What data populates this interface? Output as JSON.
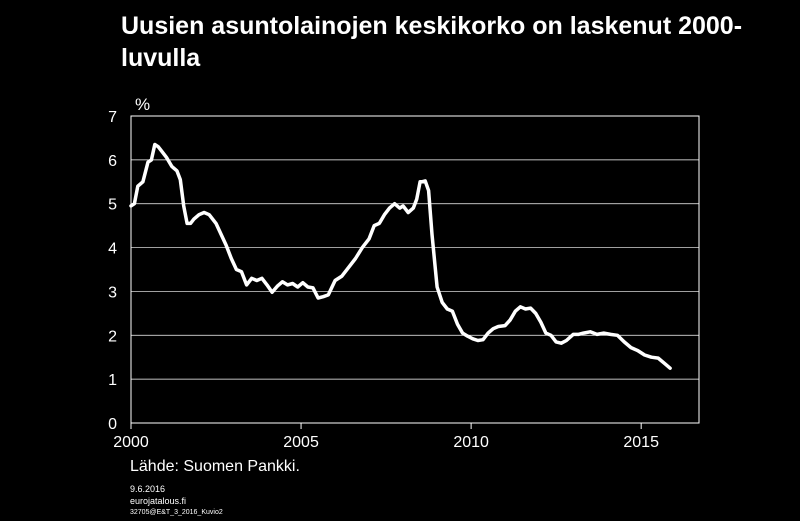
{
  "title": "Uusien asuntolainojen keskikorko on laskenut 2000-luvulla",
  "source": "Lähde: Suomen Pankki.",
  "footer": {
    "date": "9.6.2016",
    "site": "eurojatalous.fi",
    "code": "32705@E&T_3_2016_Kuvio2"
  },
  "colors": {
    "background": "#000000",
    "foreground": "#ffffff",
    "line": "#ffffff"
  },
  "chart_data": {
    "type": "line",
    "title": "Uusien asuntolainojen keskikorko on laskenut 2000-luvulla",
    "xlabel": "",
    "ylabel": "%",
    "xlim": [
      2000,
      2016.7
    ],
    "ylim": [
      0,
      7
    ],
    "x_ticks": [
      2000,
      2005,
      2010,
      2015
    ],
    "y_ticks": [
      0,
      1,
      2,
      3,
      4,
      5,
      6,
      7
    ],
    "grid": "horizontal",
    "legend": "none",
    "series": [
      {
        "x": [
          2000.0,
          2000.1,
          2000.2,
          2000.35,
          2000.5,
          2000.6,
          2000.7,
          2000.8,
          2000.9,
          2001.05,
          2001.2,
          2001.35,
          2001.45,
          2001.55,
          2001.65,
          2001.75,
          2001.85,
          2002.0,
          2002.15,
          2002.3,
          2002.5,
          2002.65,
          2002.8,
          2002.95,
          2003.1,
          2003.25,
          2003.4,
          2003.55,
          2003.7,
          2003.85,
          2004.0,
          2004.15,
          2004.3,
          2004.45,
          2004.6,
          2004.75,
          2004.9,
          2005.05,
          2005.2,
          2005.35,
          2005.5,
          2005.65,
          2005.8,
          2006.0,
          2006.2,
          2006.4,
          2006.6,
          2006.8,
          2007.0,
          2007.15,
          2007.3,
          2007.45,
          2007.6,
          2007.75,
          2007.9,
          2008.0,
          2008.15,
          2008.3,
          2008.4,
          2008.5,
          2008.55,
          2008.65,
          2008.75,
          2008.85,
          2009.0,
          2009.15,
          2009.3,
          2009.45,
          2009.6,
          2009.75,
          2009.9,
          2010.05,
          2010.2,
          2010.35,
          2010.5,
          2010.65,
          2010.8,
          2011.0,
          2011.15,
          2011.3,
          2011.45,
          2011.6,
          2011.75,
          2011.9,
          2012.05,
          2012.2,
          2012.35,
          2012.5,
          2012.65,
          2012.8,
          2013.0,
          2013.15,
          2013.3,
          2013.5,
          2013.7,
          2013.9,
          2014.1,
          2014.3,
          2014.5,
          2014.7,
          2014.9,
          2015.1,
          2015.3,
          2015.5,
          2015.7,
          2015.85
        ],
        "values": [
          4.95,
          5.0,
          5.4,
          5.5,
          5.95,
          6.0,
          6.35,
          6.3,
          6.2,
          6.05,
          5.85,
          5.75,
          5.55,
          4.95,
          4.55,
          4.55,
          4.65,
          4.75,
          4.8,
          4.75,
          4.55,
          4.3,
          4.05,
          3.75,
          3.5,
          3.45,
          3.15,
          3.3,
          3.25,
          3.3,
          3.15,
          2.98,
          3.12,
          3.22,
          3.15,
          3.18,
          3.1,
          3.2,
          3.1,
          3.08,
          2.85,
          2.88,
          2.92,
          3.25,
          3.35,
          3.55,
          3.75,
          4.0,
          4.2,
          4.5,
          4.55,
          4.75,
          4.9,
          5.0,
          4.9,
          4.95,
          4.8,
          4.9,
          5.1,
          5.5,
          5.5,
          5.52,
          5.3,
          4.3,
          3.1,
          2.75,
          2.6,
          2.55,
          2.25,
          2.05,
          1.98,
          1.92,
          1.88,
          1.9,
          2.05,
          2.15,
          2.2,
          2.22,
          2.35,
          2.55,
          2.65,
          2.6,
          2.62,
          2.5,
          2.3,
          2.05,
          2.0,
          1.85,
          1.82,
          1.88,
          2.02,
          2.02,
          2.05,
          2.08,
          2.02,
          2.05,
          2.02,
          2.0,
          1.85,
          1.72,
          1.65,
          1.55,
          1.5,
          1.48,
          1.35,
          1.25
        ]
      }
    ]
  }
}
